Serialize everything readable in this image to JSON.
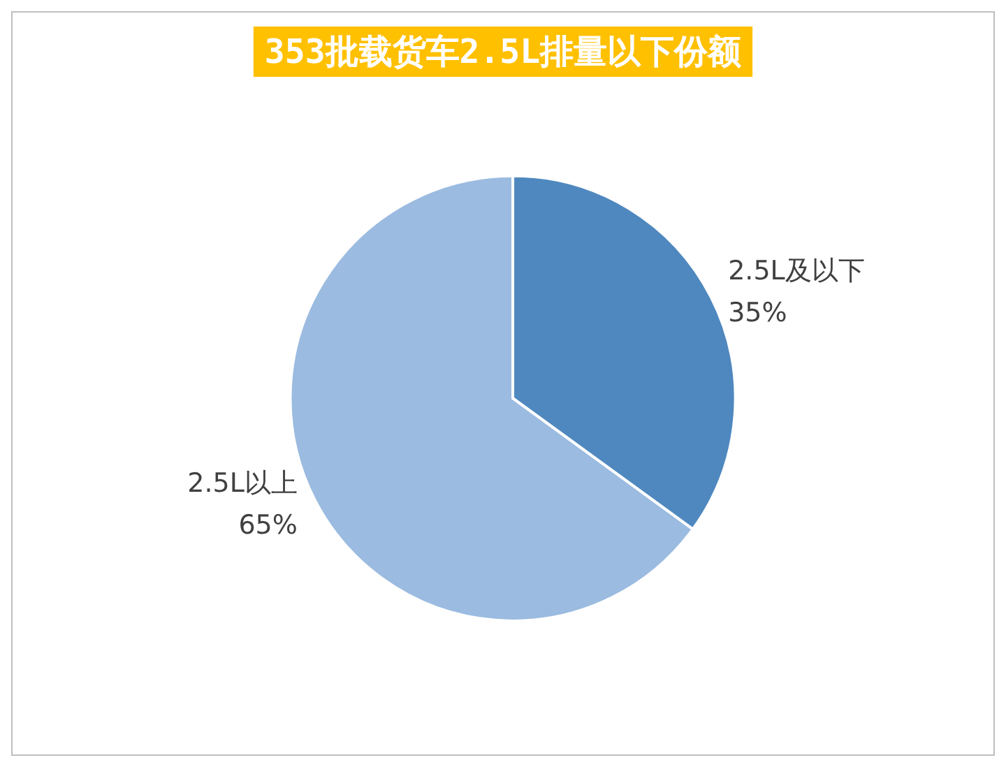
{
  "chart_data": {
    "type": "pie",
    "title": "353批载货车2.5L排量以下份额",
    "categories": [
      "2.5L及以下",
      "2.5L以上"
    ],
    "values": [
      35,
      65
    ],
    "colors": [
      "#4f88bf",
      "#9bbbe0"
    ],
    "value_labels": [
      "35%",
      "65%"
    ],
    "legend": false
  }
}
